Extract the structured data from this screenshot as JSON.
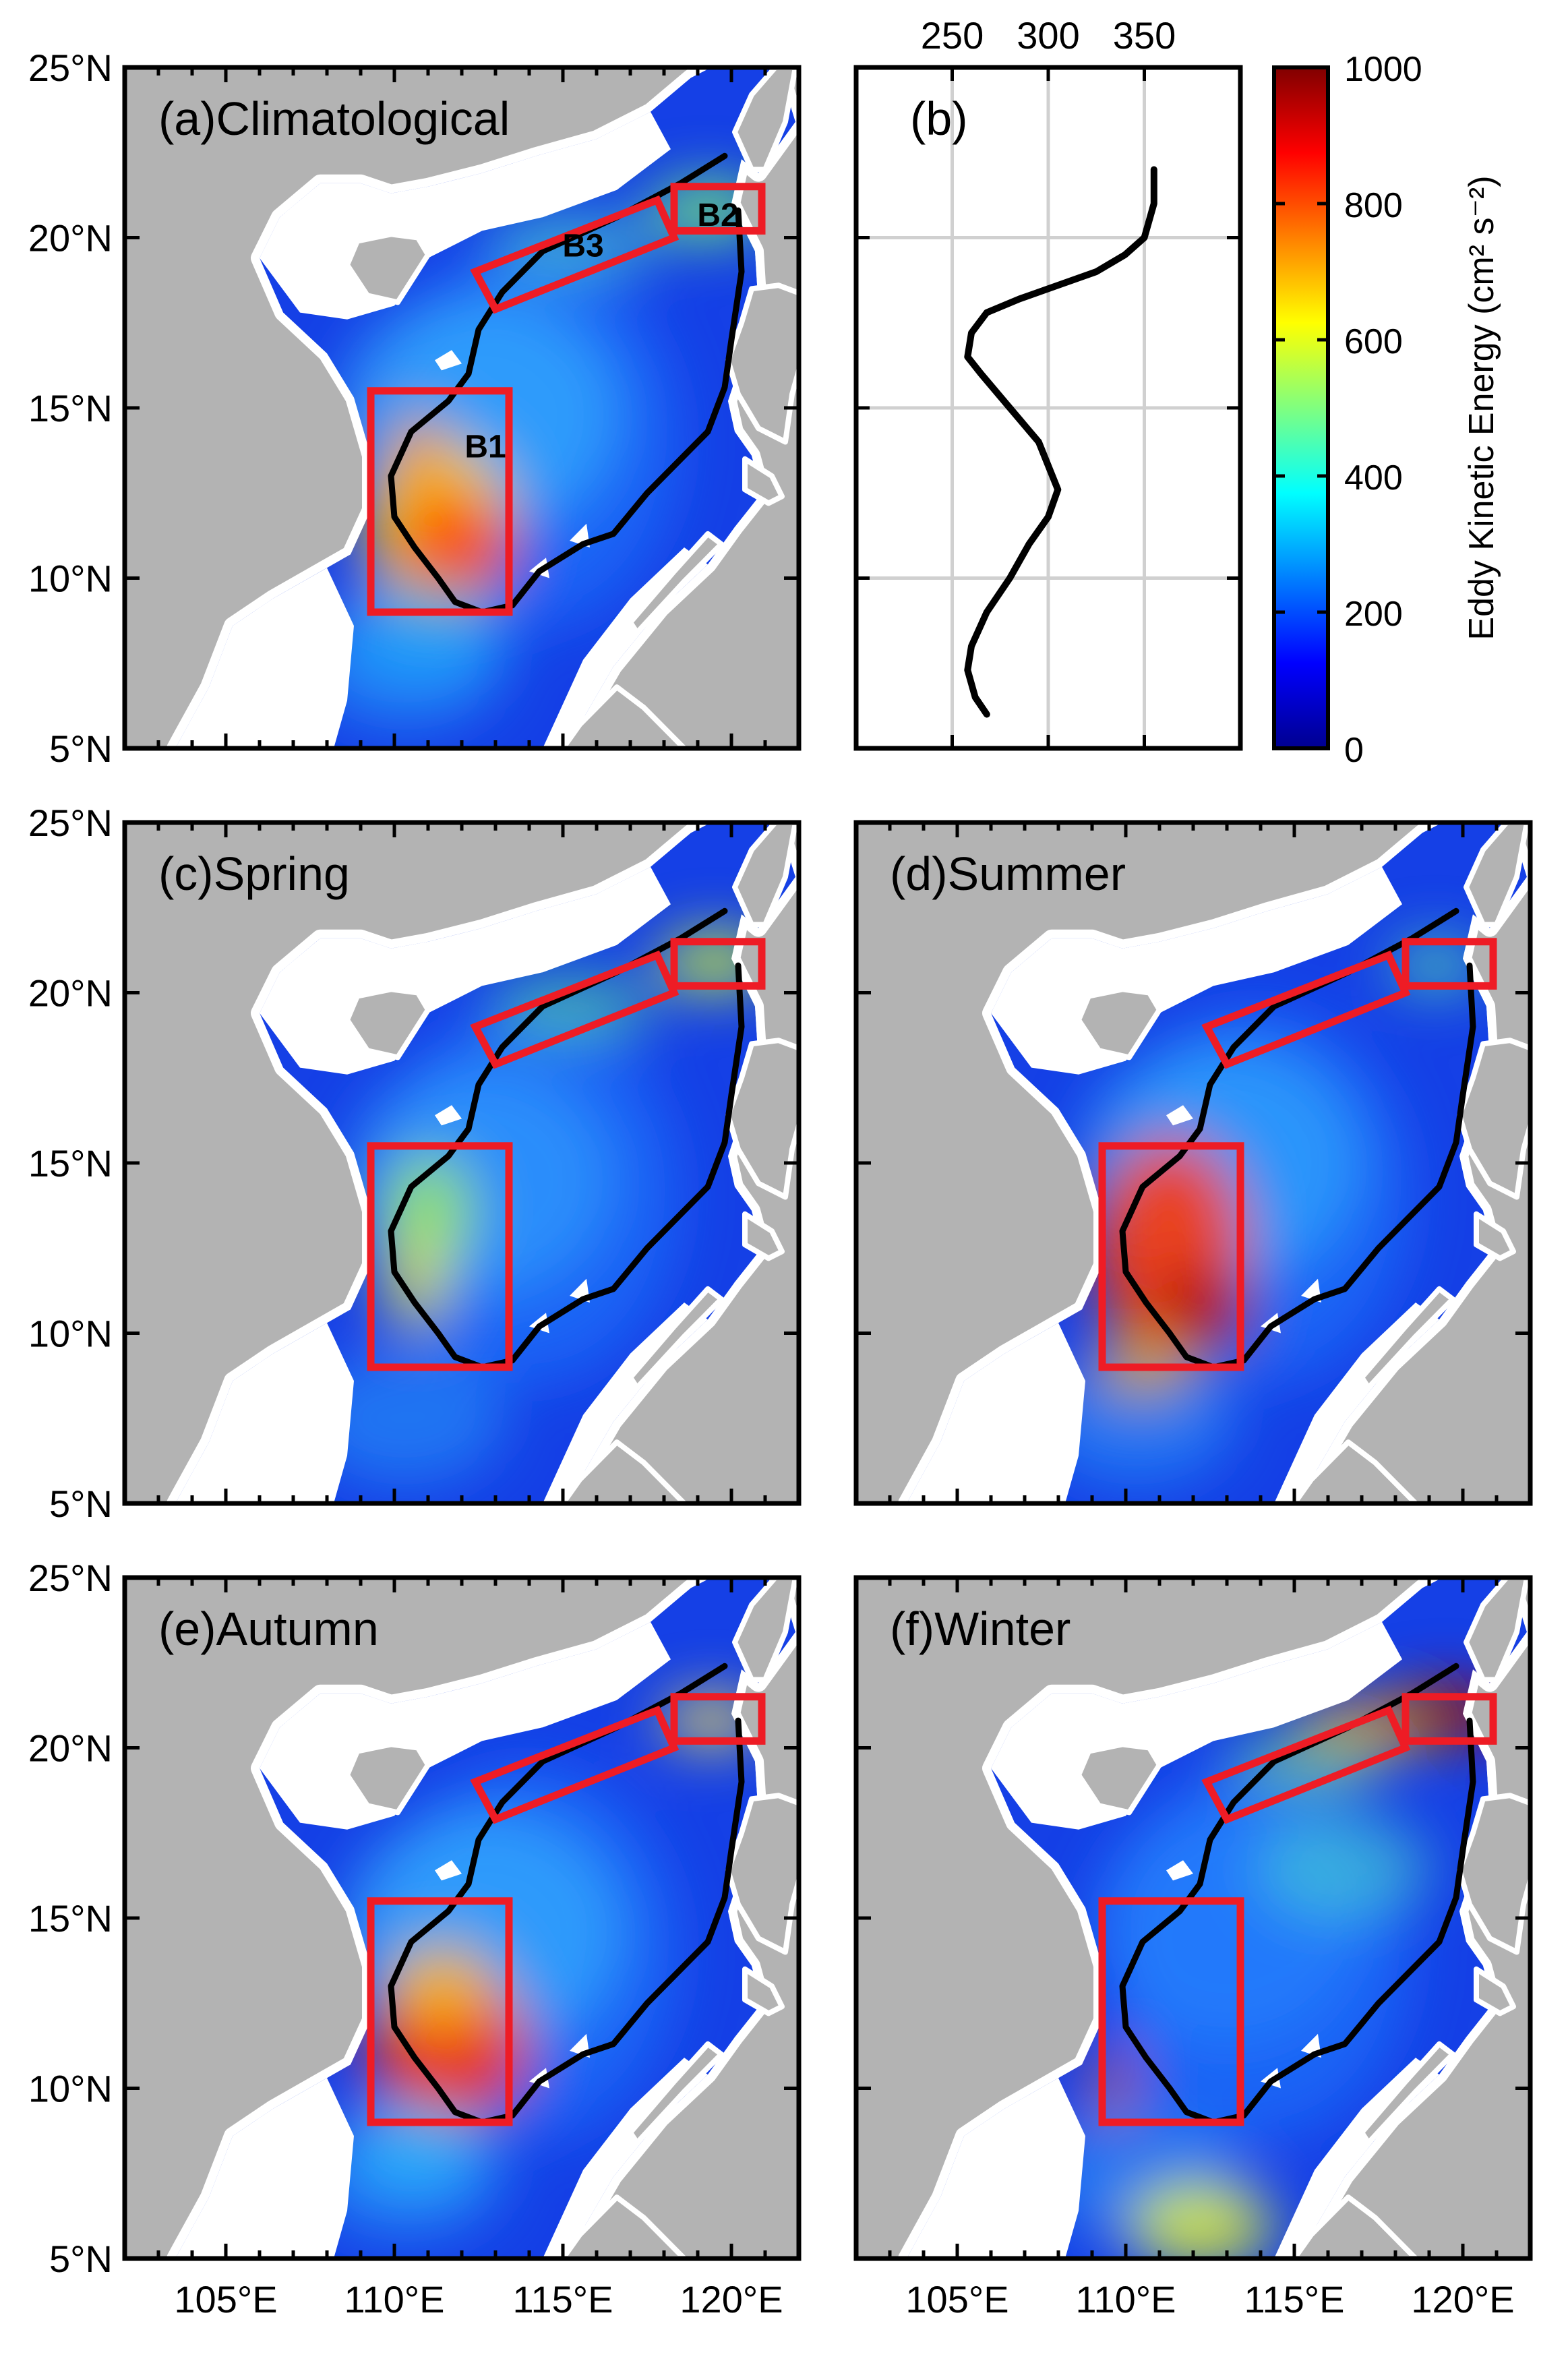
{
  "figure": {
    "panels": [
      {
        "id": "a",
        "label": "(a)Climatological",
        "boxes": [
          {
            "name": "B1",
            "label": "B1"
          },
          {
            "name": "B2",
            "label": "B2"
          },
          {
            "name": "B3",
            "label": "B3"
          }
        ]
      },
      {
        "id": "c",
        "label": "(c)Spring",
        "boxes": []
      },
      {
        "id": "d",
        "label": "(d)Summer",
        "boxes": []
      },
      {
        "id": "e",
        "label": "(e)Autumn",
        "boxes": []
      },
      {
        "id": "f",
        "label": "(f)Winter",
        "boxes": []
      }
    ],
    "lat_tick_labels": [
      "25°N",
      "20°N",
      "15°N",
      "10°N",
      "5°N"
    ],
    "lon_tick_labels": [
      "105°E",
      "110°E",
      "115°E",
      "120°E"
    ],
    "profile_panel": {
      "label": "(b)",
      "top_tick_labels": [
        "250",
        "300",
        "350"
      ]
    },
    "colorbar": {
      "label": "Eddy Kinetic Energy (cm² s⁻²)",
      "tick_labels": [
        "1000",
        "800",
        "600",
        "400",
        "200",
        "0"
      ],
      "colormap": "jet"
    },
    "colors": {
      "land": "#b3b3b3",
      "box": "#ee1c25",
      "contour": "#000000",
      "frame": "#000000"
    }
  },
  "chart_data": {
    "type": "line",
    "xlim": [
      200,
      400
    ],
    "ylim": [
      5,
      25
    ],
    "x_ticks": [
      250,
      300,
      350
    ],
    "y_ticks": [
      5,
      10,
      15,
      20,
      25
    ],
    "grid": true,
    "series": [
      {
        "x": [
          355,
          355,
          350,
          340,
          325,
          305,
          285,
          268,
          260,
          258,
          265,
          280,
          295,
          305,
          300,
          290,
          280,
          268,
          260,
          258,
          262,
          268
        ],
        "y": [
          22,
          21,
          20,
          19.5,
          19,
          18.6,
          18.2,
          17.8,
          17.2,
          16.5,
          16,
          15,
          14,
          12.6,
          11.8,
          11,
          10,
          9,
          8,
          7.3,
          6.5,
          6
        ]
      }
    ]
  }
}
